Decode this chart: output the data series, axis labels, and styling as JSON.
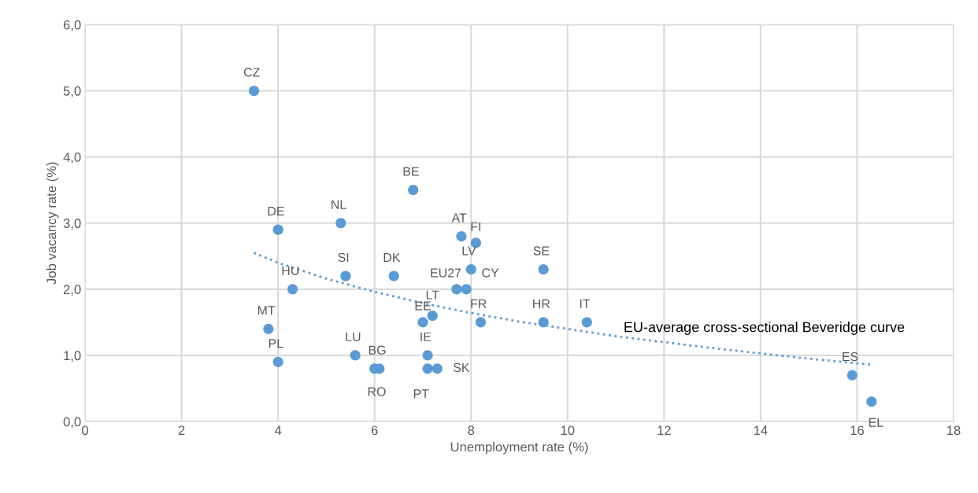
{
  "chart_data": {
    "type": "scatter",
    "xlabel": "Unemployment rate (%)",
    "ylabel": "Job vacancy rate (%)",
    "xlim": [
      0,
      18
    ],
    "xticks": [
      0,
      2,
      4,
      6,
      8,
      10,
      12,
      14,
      16,
      18
    ],
    "ylim": [
      0,
      6
    ],
    "yticks": [
      {
        "value": 0,
        "label": "0,0"
      },
      {
        "value": 1,
        "label": "1,0"
      },
      {
        "value": 2,
        "label": "2,0"
      },
      {
        "value": 3,
        "label": "3,0"
      },
      {
        "value": 4,
        "label": "4,0"
      },
      {
        "value": 5,
        "label": "5,0"
      },
      {
        "value": 6,
        "label": "6,0"
      }
    ],
    "grid": true,
    "series": [
      {
        "color": "#5b9bd5",
        "marker": "circle",
        "x": [
          3.5,
          6.8,
          4.0,
          5.3,
          7.8,
          8.1,
          5.4,
          6.4,
          8.0,
          9.5,
          4.3,
          7.7,
          7.9,
          3.8,
          7.0,
          7.2,
          8.2,
          9.5,
          10.4,
          4.0,
          5.6,
          6.1,
          6.0,
          7.1,
          7.1,
          7.3,
          15.9,
          16.3
        ],
        "values": [
          5.0,
          3.5,
          2.9,
          3.0,
          2.8,
          2.7,
          2.2,
          2.2,
          2.3,
          2.3,
          2.0,
          2.0,
          2.0,
          1.4,
          1.5,
          1.6,
          1.5,
          1.5,
          1.5,
          0.9,
          1.0,
          0.8,
          0.8,
          1.0,
          0.8,
          0.8,
          0.7,
          0.3
        ],
        "value_labels": [
          "CZ",
          "BE",
          "DE",
          "NL",
          "AT",
          "FI",
          "SI",
          "DK",
          "LV",
          "SE",
          "HU",
          "EU27",
          "CY",
          "MT",
          "EE",
          "LT",
          "FR",
          "HR",
          "IT",
          "PL",
          "LU",
          "BG",
          "RO",
          "IE",
          "PT",
          "SK",
          "ES",
          "EL"
        ]
      },
      {
        "type": "line",
        "name": "EU-average cross-sectional Beveridge curve",
        "color": "#5b9bd5",
        "line_style": "dotted",
        "x": [
          3.5,
          4,
          5,
          6,
          7,
          8,
          9,
          10,
          11,
          12,
          13,
          14,
          15,
          16,
          16.3
        ],
        "values": [
          2.55,
          2.4,
          2.16,
          1.96,
          1.79,
          1.64,
          1.51,
          1.4,
          1.29,
          1.2,
          1.11,
          1.03,
          0.95,
          0.88,
          0.86
        ]
      }
    ]
  }
}
